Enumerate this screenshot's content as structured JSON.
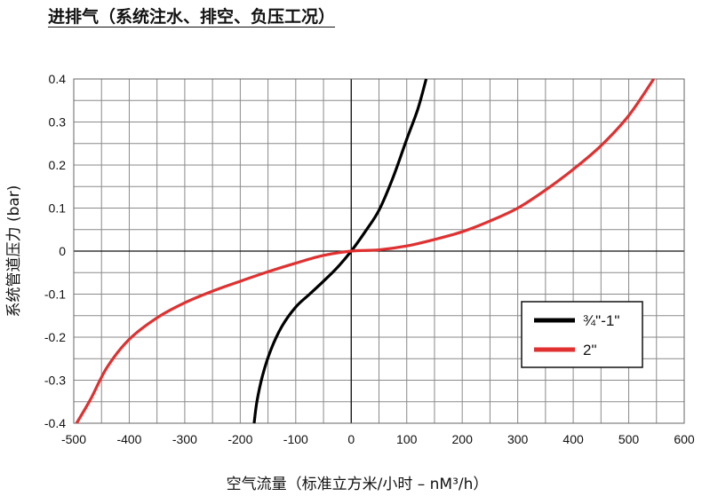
{
  "chart_data": {
    "type": "line",
    "title": "进排气（系统注水、排空、负压工况）",
    "xlabel": "空气流量（标准立方米/小时 – nM³/h）",
    "ylabel": "系统管道压力 (bar)",
    "xlim": [
      -500,
      600
    ],
    "ylim": [
      -0.4,
      0.4
    ],
    "x_ticks": [
      -500,
      -400,
      -300,
      -200,
      -100,
      0,
      100,
      200,
      300,
      400,
      500,
      600
    ],
    "x_tick_labels": [
      "-500",
      "-400",
      "-300",
      "-200",
      "-100",
      "0",
      "100",
      "200",
      "300",
      "400",
      "500",
      "600"
    ],
    "y_ticks": [
      0.4,
      0.3,
      0.2,
      0.1,
      0,
      -0.1,
      -0.2,
      -0.3,
      -0.4
    ],
    "y_tick_labels": [
      "0.4",
      "0.3",
      "0.2",
      "0.1",
      "0",
      "-0.1",
      "-0.2",
      "-0.3",
      "-0.4"
    ],
    "grid": true,
    "legend_position": "bottom-right",
    "series": [
      {
        "name": "¾\"-1\"",
        "color": "#000000",
        "points": [
          [
            -175,
            -0.4
          ],
          [
            -170,
            -0.35
          ],
          [
            -160,
            -0.29
          ],
          [
            -145,
            -0.23
          ],
          [
            -125,
            -0.175
          ],
          [
            -100,
            -0.13
          ],
          [
            -75,
            -0.1
          ],
          [
            -50,
            -0.07
          ],
          [
            -25,
            -0.038
          ],
          [
            0,
            0
          ],
          [
            25,
            0.045
          ],
          [
            50,
            0.095
          ],
          [
            75,
            0.17
          ],
          [
            100,
            0.26
          ],
          [
            120,
            0.33
          ],
          [
            135,
            0.4
          ]
        ]
      },
      {
        "name": "2\"",
        "color": "#e03030",
        "points": [
          [
            -495,
            -0.4
          ],
          [
            -470,
            -0.345
          ],
          [
            -440,
            -0.27
          ],
          [
            -400,
            -0.205
          ],
          [
            -350,
            -0.155
          ],
          [
            -300,
            -0.12
          ],
          [
            -250,
            -0.093
          ],
          [
            -200,
            -0.07
          ],
          [
            -150,
            -0.048
          ],
          [
            -100,
            -0.028
          ],
          [
            -50,
            -0.01
          ],
          [
            0,
            0
          ],
          [
            50,
            0.003
          ],
          [
            100,
            0.012
          ],
          [
            150,
            0.027
          ],
          [
            200,
            0.045
          ],
          [
            250,
            0.07
          ],
          [
            300,
            0.1
          ],
          [
            350,
            0.142
          ],
          [
            400,
            0.19
          ],
          [
            450,
            0.245
          ],
          [
            500,
            0.315
          ],
          [
            545,
            0.4
          ]
        ]
      }
    ]
  }
}
